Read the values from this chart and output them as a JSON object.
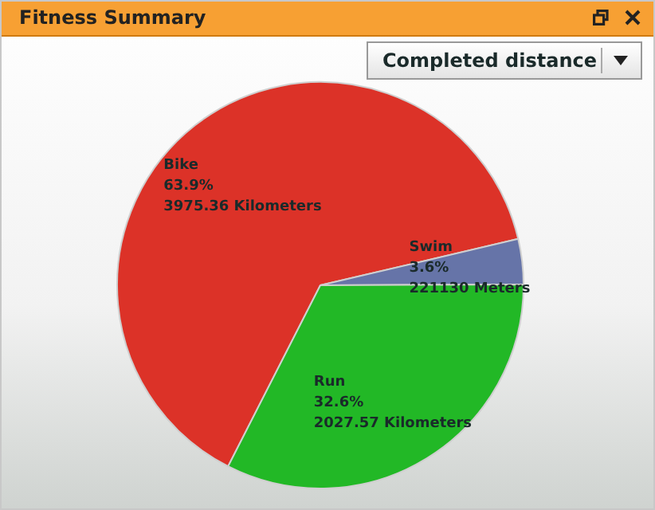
{
  "chart_data": {
    "type": "pie",
    "title": "Fitness Summary",
    "subtitle": "Completed distance",
    "categories": [
      "Bike",
      "Swim",
      "Run"
    ],
    "values": [
      63.9,
      3.6,
      32.6
    ],
    "colors": [
      "#dc3228",
      "#6674a8",
      "#22b826"
    ],
    "value_labels": [
      "63.9%",
      "3.6%",
      "32.6%"
    ],
    "annotations": [
      "3975.36 Kilometers",
      "221130 Meters",
      "2027.57 Kilometers"
    ],
    "legend": false
  }
}
